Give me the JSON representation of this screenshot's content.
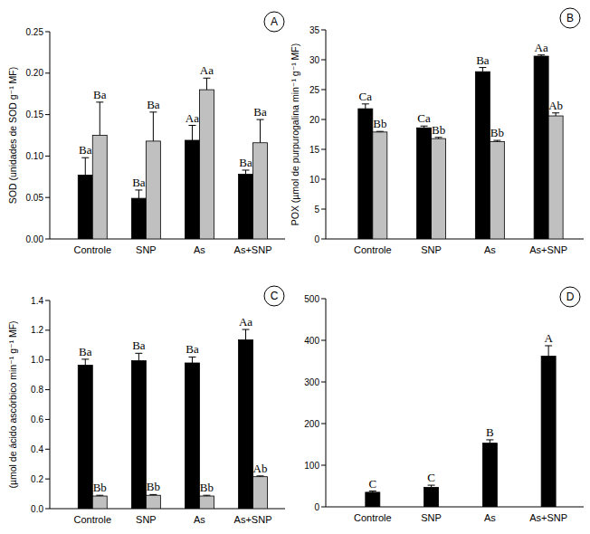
{
  "chart_data": [
    {
      "type": "bar",
      "panel": "A",
      "y_label": "SOD (unidades de SOD g⁻¹ MF)",
      "categories": [
        "Controle",
        "SNP",
        "As",
        "As+SNP"
      ],
      "ylim": [
        0,
        0.25
      ],
      "yticks": [
        {
          "value": 0,
          "label": "0.00"
        },
        0.05,
        {
          "value": 0.1,
          "label": "0.10"
        },
        0.15,
        {
          "value": 0.2,
          "label": "0.20"
        },
        0.25
      ],
      "series": [
        {
          "color": "#000000",
          "values": [
            0.077,
            0.049,
            0.119,
            0.078
          ],
          "errors": [
            0.021,
            0.01,
            0.018,
            0.005
          ],
          "letters": [
            "Ba",
            "Ba",
            "Aa",
            "Ba"
          ]
        },
        {
          "color": "#c0c0c0",
          "values": [
            0.125,
            0.118,
            0.18,
            0.116
          ],
          "errors": [
            0.04,
            0.035,
            0.014,
            0.028
          ],
          "letters": [
            "Ba",
            "Ba",
            "Aa",
            "Ba"
          ]
        }
      ]
    },
    {
      "type": "bar",
      "panel": "B",
      "y_label": "POX (µmol de purpurogalina min⁻¹ g⁻¹ MF)",
      "categories": [
        "Controle",
        "SNP",
        "As",
        "As+SNP"
      ],
      "ylim": [
        0,
        35
      ],
      "yticks": [
        0,
        5,
        10,
        15,
        20,
        25,
        30,
        35
      ],
      "series": [
        {
          "color": "#000000",
          "values": [
            21.8,
            18.6,
            28.0,
            30.6
          ],
          "errors": [
            0.8,
            0.3,
            0.7,
            0.2
          ],
          "letters": [
            "Ca",
            "Ca",
            "Ba",
            "Aa"
          ]
        },
        {
          "color": "#c0c0c0",
          "values": [
            17.9,
            16.8,
            16.3,
            20.6
          ],
          "errors": [
            0.1,
            0.2,
            0.2,
            0.5
          ],
          "letters": [
            "Bb",
            "Bb",
            "Bb",
            "Ab"
          ]
        }
      ]
    },
    {
      "type": "bar",
      "panel": "C",
      "y_label": "(µmol de ácido ascórbico min⁻¹ g⁻¹ MF)",
      "categories": [
        "Controle",
        "SNP",
        "As",
        "As+SNP"
      ],
      "ylim": [
        0,
        1.4
      ],
      "yticks": [
        {
          "value": 0,
          "label": "0.0"
        },
        0.2,
        0.4,
        0.6,
        0.8,
        {
          "value": 1,
          "label": "1.0"
        },
        1.2,
        1.4
      ],
      "series": [
        {
          "color": "#000000",
          "values": [
            0.965,
            0.995,
            0.98,
            1.135
          ],
          "errors": [
            0.04,
            0.05,
            0.04,
            0.07
          ],
          "letters": [
            "Ba",
            "Ba",
            "Ba",
            "Aa"
          ]
        },
        {
          "color": "#c0c0c0",
          "values": [
            0.085,
            0.09,
            0.085,
            0.215
          ],
          "errors": [
            0.005,
            0.005,
            0.005,
            0.005
          ],
          "letters": [
            "Bb",
            "Bb",
            "Bb",
            "Ab"
          ]
        }
      ]
    },
    {
      "type": "bar",
      "panel": "D",
      "categories": [
        "Controle",
        "SNP",
        "As",
        "As+SNP"
      ],
      "ylim": [
        0,
        500
      ],
      "yticks": [
        0,
        100,
        200,
        300,
        400,
        500
      ],
      "series": [
        {
          "color": "#000000",
          "values": [
            35,
            47,
            153,
            362
          ],
          "errors": [
            3,
            5,
            8,
            25
          ],
          "letters": [
            "C",
            "C",
            "B",
            "A"
          ]
        }
      ]
    }
  ]
}
